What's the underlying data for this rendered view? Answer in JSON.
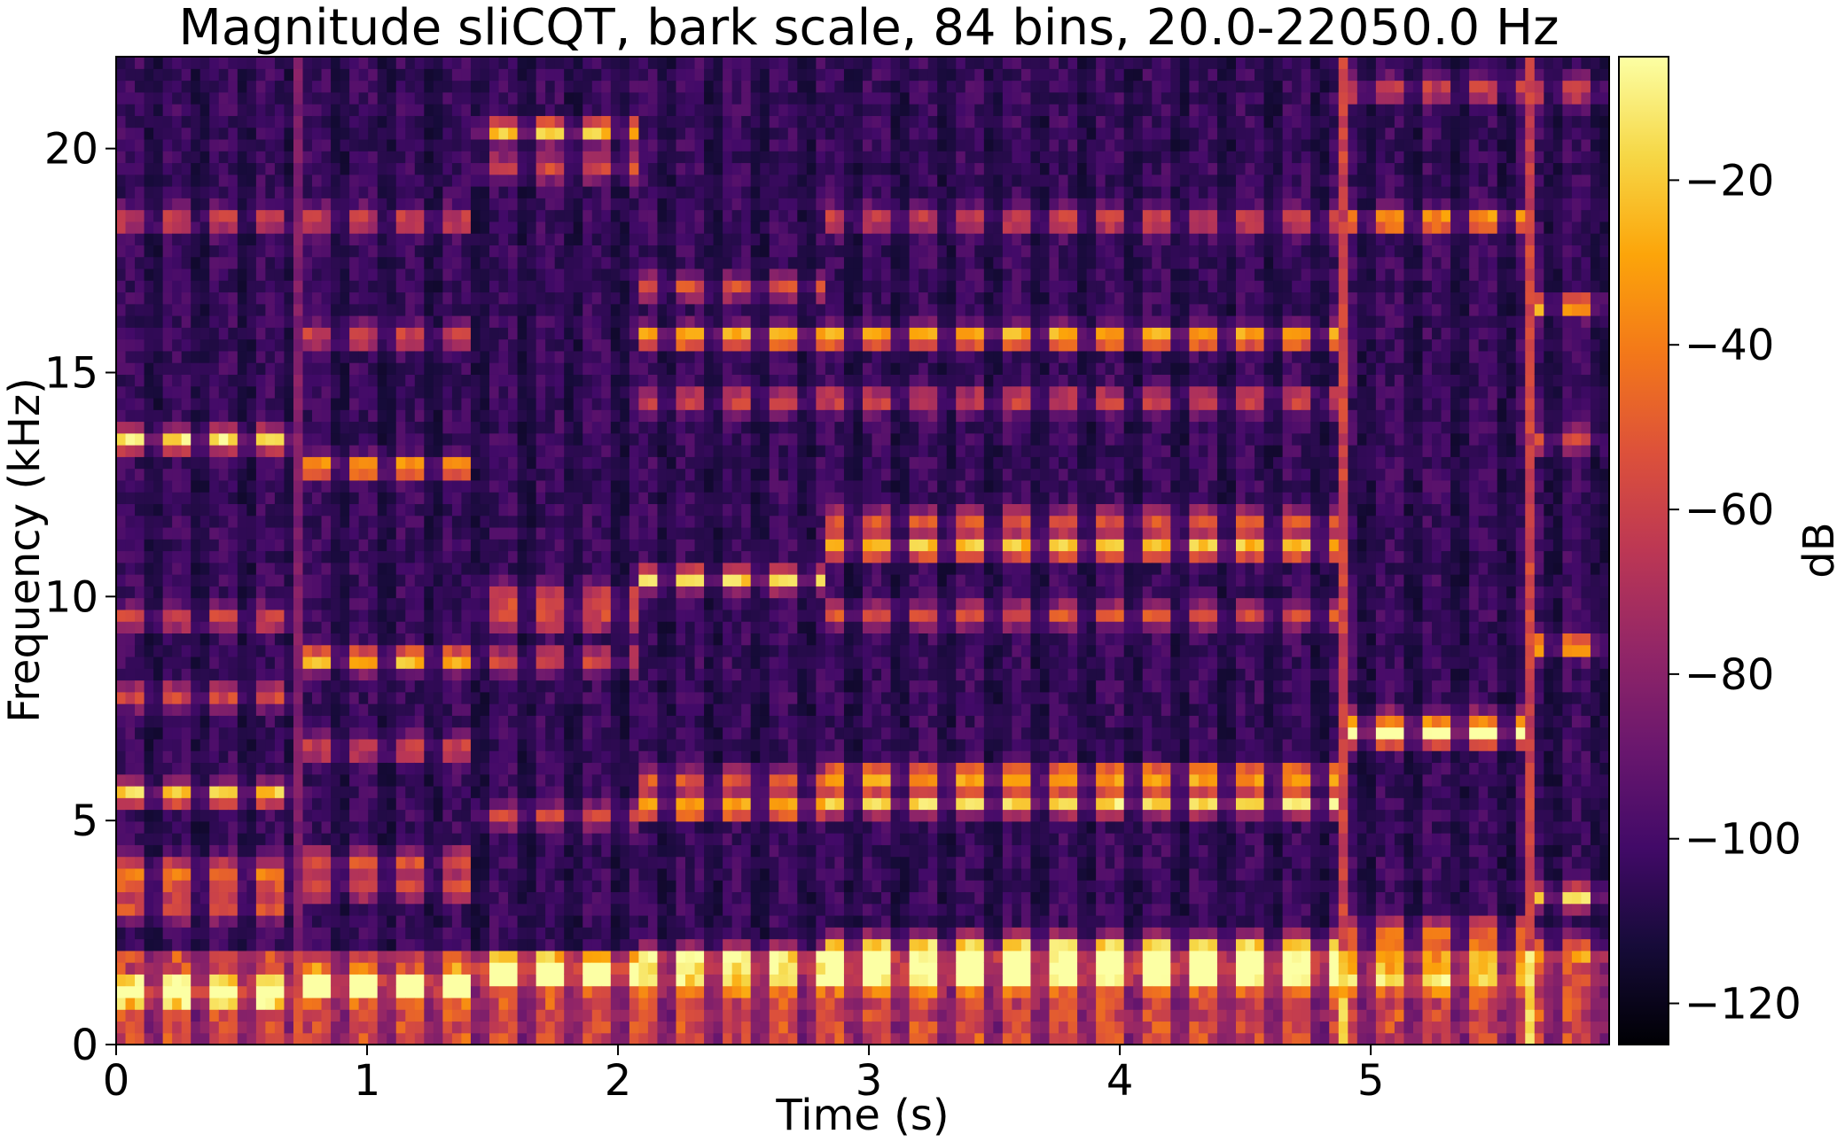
{
  "chart_data": {
    "type": "heatmap",
    "title": "Magnitude sliCQT, bark scale, 84 bins, 20.0-22050.0 Hz",
    "xlabel": "Time (s)",
    "ylabel": "Frequency (kHz)",
    "xlim": [
      0,
      5.95
    ],
    "ylim": [
      0,
      22.05
    ],
    "xticks": [
      0,
      1,
      2,
      3,
      4,
      5
    ],
    "xtick_labels": [
      "0",
      "1",
      "2",
      "3",
      "4",
      "5"
    ],
    "yticks": [
      0,
      5,
      10,
      15,
      20
    ],
    "ytick_labels": [
      "0",
      "5",
      "10",
      "15",
      "20"
    ],
    "colormap": "inferno",
    "colorbar": {
      "label": "dB",
      "range": [
        -125,
        -5
      ],
      "ticks": [
        -120,
        -100,
        -80,
        -60,
        -40,
        -20
      ],
      "tick_labels": [
        "−120",
        "−100",
        "−80",
        "−60",
        "−40",
        "−20"
      ]
    },
    "segments": [
      {
        "t0": 0.0,
        "t1": 0.7,
        "bands_khz": [
          1.1,
          1.25,
          3.05,
          3.6,
          3.95,
          5.6,
          7.8,
          9.5,
          13.5,
          18.4
        ],
        "peak_khz": [
          5.6,
          13.5
        ]
      },
      {
        "t0": 0.73,
        "t1": 1.41,
        "bands_khz": [
          1.25,
          1.4,
          3.5,
          4.1,
          6.6,
          8.6,
          12.9,
          15.8,
          18.4
        ],
        "peak_khz": [
          8.6,
          12.9
        ]
      },
      {
        "t0": 1.43,
        "t1": 2.09,
        "bands_khz": [
          1.6,
          1.75,
          5.1,
          8.6,
          9.5,
          10.0,
          20.4,
          19.6
        ],
        "peak_khz": [
          1.6,
          20.4
        ]
      },
      {
        "t0": 2.1,
        "t1": 2.82,
        "bands_khz": [
          1.5,
          2.0,
          5.3,
          5.9,
          10.4,
          14.4,
          15.8,
          16.9
        ],
        "peak_khz": [
          5.3,
          10.4,
          15.8
        ]
      },
      {
        "t0": 2.83,
        "t1": 4.89,
        "bands_khz": [
          1.5,
          1.75,
          2.2,
          5.4,
          6.0,
          9.6,
          11.1,
          11.7,
          14.4,
          15.8,
          18.4
        ],
        "peak_khz": [
          2.2,
          5.4,
          6.0,
          11.1,
          15.8
        ]
      },
      {
        "t0": 4.91,
        "t1": 5.63,
        "bands_khz": [
          1.5,
          2.2,
          2.6,
          6.9,
          7.2,
          18.4,
          21.3
        ],
        "peak_khz": [
          6.9,
          18.4
        ]
      },
      {
        "t0": 5.65,
        "t1": 5.95,
        "bands_khz": [
          2.2,
          3.3,
          8.9,
          13.5,
          16.5,
          21.3
        ],
        "peak_khz": [
          3.3,
          8.9,
          16.5
        ]
      }
    ]
  }
}
